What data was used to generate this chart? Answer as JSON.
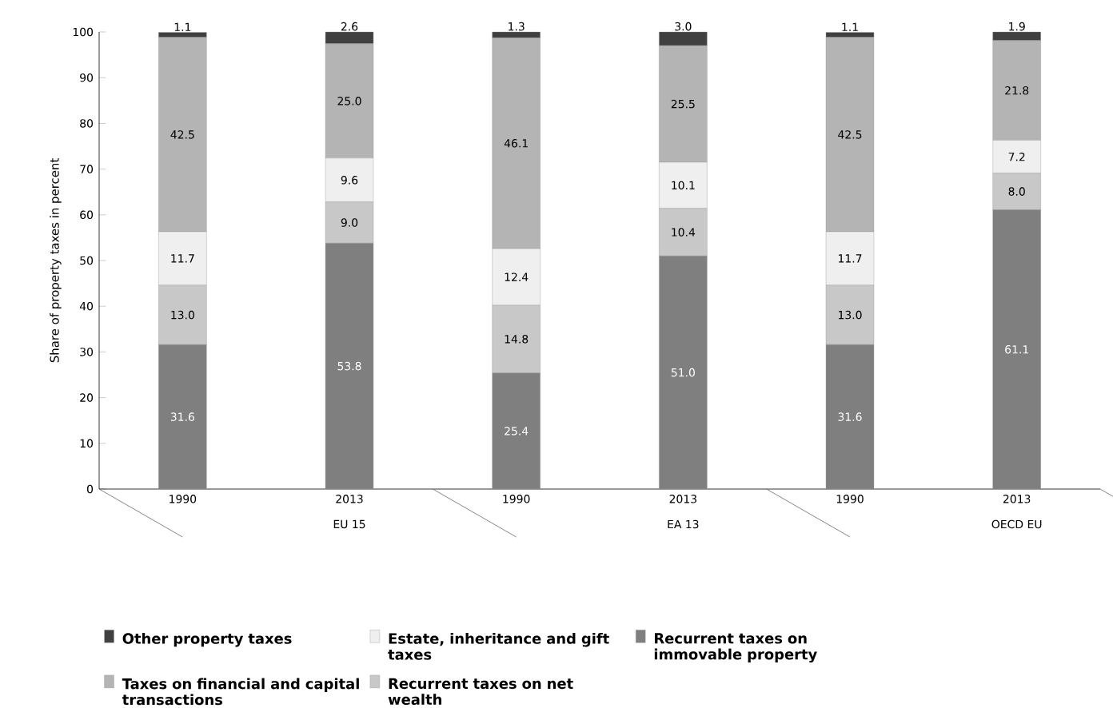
{
  "chart_data": {
    "type": "bar",
    "stacked": true,
    "ylabel": "Share of property taxes in percent",
    "categories": [
      "1990",
      "2013",
      "1990",
      "2013",
      "1990",
      "2013"
    ],
    "annotations": [
      "EU 15",
      "EA 13",
      "OECD EU"
    ],
    "ylim": [
      0,
      100
    ],
    "yticks": [
      0,
      10,
      20,
      30,
      40,
      50,
      60,
      70,
      80,
      90,
      100
    ],
    "legend": "bottom",
    "grid": false,
    "series": [
      {
        "name": "Recurrent taxes on immovable property",
        "color": "#7f7f7f",
        "values": [
          31.6,
          53.8,
          25.4,
          51.0,
          31.6,
          61.1
        ],
        "value_labels": [
          "31.6",
          "53.8",
          "25.4",
          "51.0",
          "31.6",
          "61.1"
        ]
      },
      {
        "name": "Recurrent taxes on net wealth",
        "color": "#c8c8c8",
        "values": [
          13.0,
          9.0,
          14.8,
          10.4,
          13.0,
          8.0
        ],
        "value_labels": [
          "13.0",
          "9.0",
          "14.8",
          "10.4",
          "13.0",
          "8.0"
        ]
      },
      {
        "name": "Estate, inheritance and gift taxes",
        "color": "#efefef",
        "values": [
          11.7,
          9.6,
          12.4,
          10.1,
          11.7,
          7.2
        ],
        "value_labels": [
          "11.7",
          "9.6",
          "12.4",
          "10.1",
          "11.7",
          "7.2"
        ]
      },
      {
        "name": "Taxes on financial and capital transactions",
        "color": "#b4b4b4",
        "values": [
          42.5,
          25.0,
          46.1,
          25.5,
          42.5,
          21.8
        ],
        "value_labels": [
          "42.5",
          "25.0",
          "46.1",
          "25.5",
          "42.5",
          "21.8"
        ]
      },
      {
        "name": "Other property taxes",
        "color": "#404040",
        "values": [
          1.1,
          2.6,
          1.3,
          3.0,
          1.1,
          1.9
        ],
        "value_labels": [
          "1.1",
          "2.6",
          "1.3",
          "3.0",
          "1.1",
          "1.9"
        ]
      }
    ]
  }
}
